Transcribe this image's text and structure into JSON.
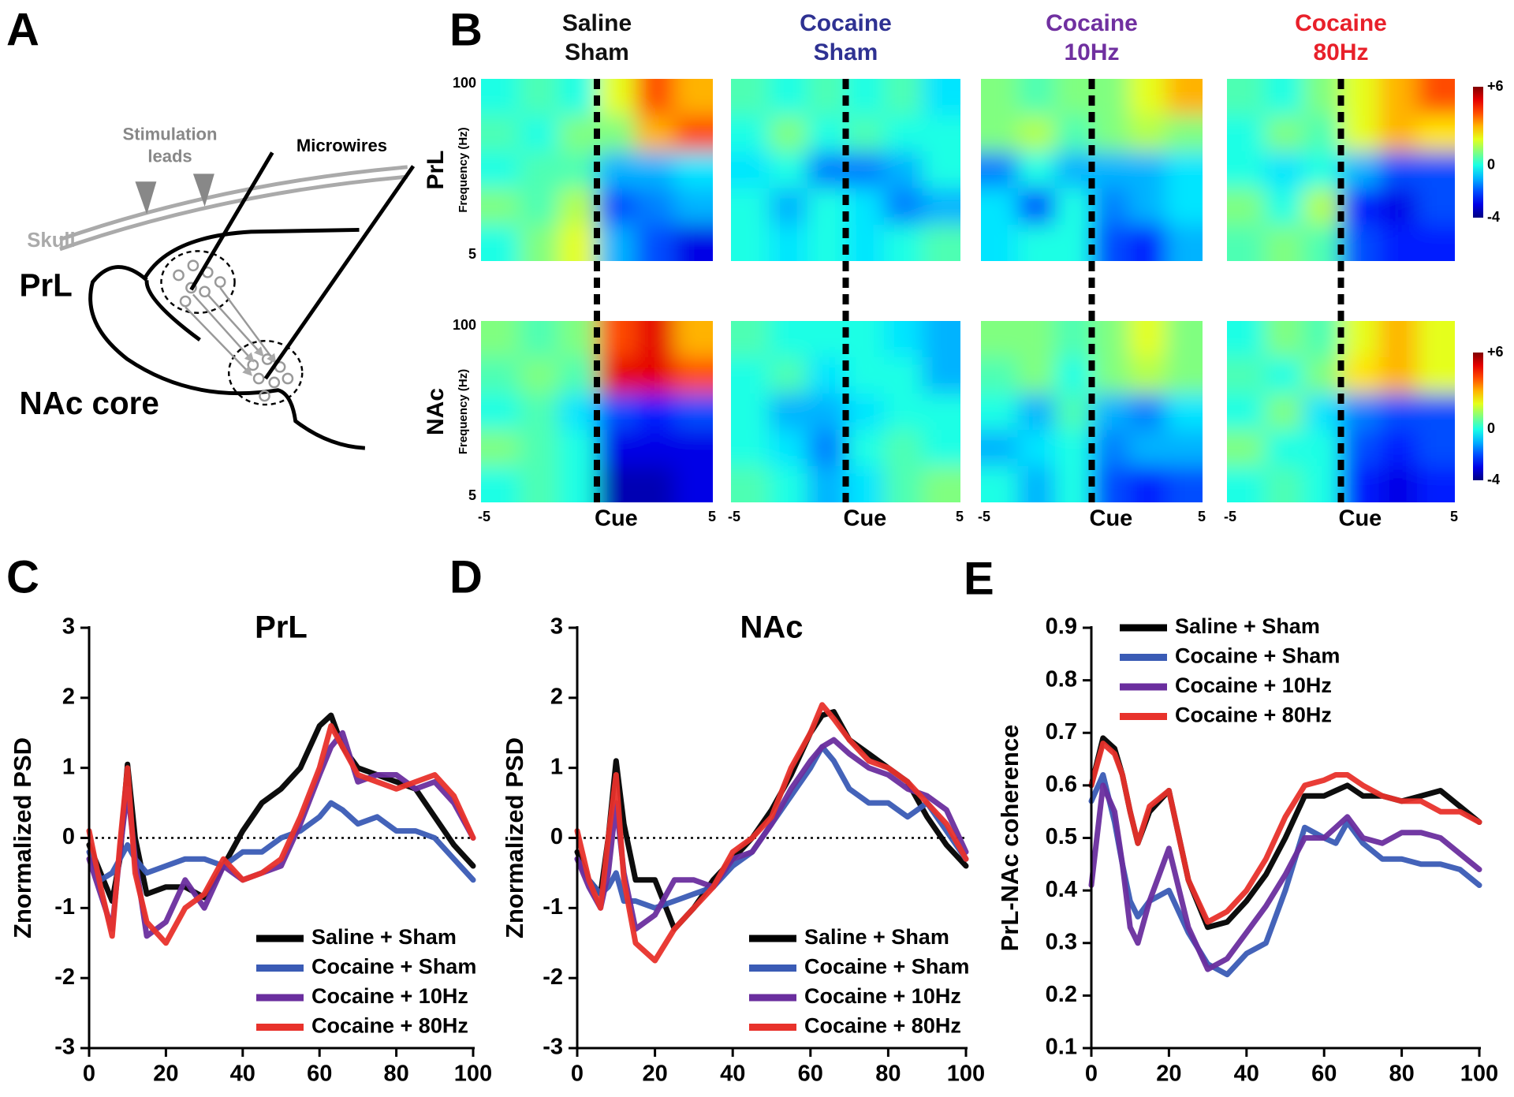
{
  "panel_labels": [
    "A",
    "B",
    "C",
    "D",
    "E"
  ],
  "diagram": {
    "stimulation": [
      "Stimulation",
      "leads"
    ],
    "microwires": "Microwires",
    "skull": "Skull",
    "region_top": "PrL",
    "region_bottom": "NAc core"
  },
  "chart_data": [
    {
      "type": "heatmap",
      "colormap": "jet",
      "columns": [
        {
          "title": [
            "Saline",
            "Sham"
          ],
          "color": "#111111"
        },
        {
          "title": [
            "Cocaine",
            "Sham"
          ],
          "color": "#2e3192"
        },
        {
          "title": [
            "Cocaine",
            "10Hz"
          ],
          "color": "#7030a0"
        },
        {
          "title": [
            "Cocaine",
            "80Hz"
          ],
          "color": "#e8202a"
        }
      ],
      "ylabel": "Frequency (Hz)",
      "xlim": [
        -5,
        5
      ],
      "xticks": [
        -5,
        {
          "value": 0,
          "label": "Cue"
        },
        5
      ],
      "ylim": [
        5,
        100
      ],
      "yticks": [
        5,
        100
      ],
      "clim": [
        -4,
        6
      ],
      "cticks": [
        {
          "value": 6,
          "label": "+6"
        },
        0,
        -4
      ],
      "rows": [
        {
          "label": "PrL",
          "maps": [
            [
              [
                0,
                0.5,
                0,
                2,
                4,
                3
              ],
              [
                0.5,
                0,
                1,
                1,
                3,
                4
              ],
              [
                0,
                0.5,
                0.5,
                -1,
                -1,
                -0.5
              ],
              [
                1,
                0.5,
                1.5,
                -2,
                -1.5,
                -1
              ],
              [
                0,
                1,
                2,
                -1,
                -2,
                -3
              ]
            ],
            [
              [
                0.5,
                0,
                0.5,
                0,
                0.5,
                -0.5
              ],
              [
                0,
                1,
                0,
                0.5,
                0,
                0
              ],
              [
                -0.5,
                0,
                -1.5,
                -1.5,
                -1,
                0
              ],
              [
                0,
                -1,
                0,
                -0.5,
                -1.5,
                -1
              ],
              [
                0,
                -0.5,
                0,
                -0.5,
                0,
                0.5
              ]
            ],
            [
              [
                1,
                0.5,
                1,
                1,
                2,
                3
              ],
              [
                1,
                1.5,
                0.5,
                1,
                1.5,
                1
              ],
              [
                -1.5,
                0,
                -1,
                -1,
                -1,
                -0.5
              ],
              [
                -0.5,
                -2,
                0,
                -1.5,
                -1,
                -0.5
              ],
              [
                -0.5,
                0,
                0,
                -2,
                -2.5,
                -1
              ]
            ],
            [
              [
                0.5,
                0,
                1,
                2,
                3,
                4
              ],
              [
                0,
                1,
                0.5,
                2,
                3,
                2.5
              ],
              [
                0,
                -0.5,
                0,
                -1,
                -2,
                -2
              ],
              [
                1,
                0,
                1.5,
                -2.5,
                -3,
                -2
              ],
              [
                0.5,
                1,
                0.5,
                -2,
                -2.5,
                -2.5
              ]
            ]
          ]
        },
        {
          "label": "NAc",
          "maps": [
            [
              [
                1,
                0.5,
                1,
                4,
                5,
                3
              ],
              [
                0.5,
                1,
                0.5,
                5,
                5,
                4
              ],
              [
                0,
                0.5,
                -0.5,
                -2,
                -2.5,
                -2
              ],
              [
                1,
                0.5,
                0,
                -3,
                -3,
                -3
              ],
              [
                0,
                0.5,
                0,
                -3.5,
                -3.5,
                -3
              ]
            ],
            [
              [
                0.5,
                0,
                0,
                0,
                -0.5,
                -1
              ],
              [
                0,
                0.5,
                -0.5,
                0,
                0,
                -1
              ],
              [
                0,
                -1,
                -1,
                -0.5,
                0,
                0
              ],
              [
                0,
                -0.5,
                -1.5,
                0,
                0.5,
                0
              ],
              [
                0.5,
                0,
                -1,
                -0.5,
                0.5,
                1
              ]
            ],
            [
              [
                1,
                1,
                0.5,
                1,
                2,
                1
              ],
              [
                0.5,
                1,
                0,
                1,
                1.5,
                1
              ],
              [
                0,
                -1,
                0.5,
                -1,
                -1.5,
                -0.5
              ],
              [
                -1,
                -0.5,
                0,
                -1.5,
                -1,
                -1
              ],
              [
                0,
                -1,
                0,
                -2,
                -2.5,
                -2
              ]
            ],
            [
              [
                0,
                1,
                0.5,
                2,
                3,
                2
              ],
              [
                0.5,
                0,
                1,
                2.5,
                3,
                2
              ],
              [
                0,
                1,
                -0.5,
                -1.5,
                -2,
                -2
              ],
              [
                1,
                0,
                0,
                -2,
                -2.5,
                -2
              ],
              [
                0,
                0.5,
                0,
                -2.5,
                -3,
                -2.5
              ]
            ]
          ]
        }
      ]
    },
    {
      "type": "line",
      "title": "PrL",
      "ylabel": "Znormalized PSD",
      "x": [
        0,
        3,
        6,
        8,
        10,
        12,
        15,
        20,
        25,
        30,
        35,
        40,
        45,
        50,
        55,
        60,
        63,
        66,
        70,
        75,
        80,
        85,
        90,
        95,
        100
      ],
      "xlim": [
        0,
        100
      ],
      "xticks": [
        0,
        20,
        40,
        60,
        80,
        100
      ],
      "ylim": [
        -3,
        3
      ],
      "yticks": [
        -3,
        -2,
        -1,
        0,
        1,
        2,
        3
      ],
      "hline": 0,
      "legend": "lower right",
      "series": [
        {
          "name": "Saline + Sham",
          "color": "#000000",
          "values": [
            -0.1,
            -0.5,
            -0.9,
            -0.3,
            1.05,
            0,
            -0.8,
            -0.7,
            -0.7,
            -0.85,
            -0.4,
            0.1,
            0.5,
            0.7,
            1,
            1.6,
            1.75,
            1.3,
            1,
            0.9,
            0.8,
            0.7,
            0.3,
            -0.1,
            -0.4
          ]
        },
        {
          "name": "Cocaine + Sham",
          "color": "#3a5bb5",
          "values": [
            -0.2,
            -0.6,
            -0.5,
            -0.3,
            -0.1,
            -0.3,
            -0.5,
            -0.4,
            -0.3,
            -0.3,
            -0.4,
            -0.2,
            -0.2,
            0,
            0.1,
            0.3,
            0.5,
            0.4,
            0.2,
            0.3,
            0.1,
            0.1,
            0,
            -0.3,
            -0.6
          ]
        },
        {
          "name": "Cocaine + 10Hz",
          "color": "#6a2e9e",
          "values": [
            -0.3,
            -0.8,
            -1.3,
            -0.2,
            0.7,
            -0.3,
            -1.4,
            -1.2,
            -0.6,
            -1,
            -0.4,
            -0.6,
            -0.5,
            -0.4,
            0.2,
            0.9,
            1.3,
            1.5,
            0.8,
            0.9,
            0.9,
            0.7,
            0.8,
            0.5,
            0
          ]
        },
        {
          "name": "Cocaine + 80Hz",
          "color": "#e8322b",
          "values": [
            0.1,
            -0.7,
            -1.4,
            -0.1,
            1,
            -0.5,
            -1.2,
            -1.5,
            -1,
            -0.8,
            -0.3,
            -0.6,
            -0.5,
            -0.3,
            0.3,
            1,
            1.6,
            1.3,
            0.9,
            0.8,
            0.7,
            0.8,
            0.9,
            0.6,
            0
          ]
        }
      ]
    },
    {
      "type": "line",
      "title": "NAc",
      "ylabel": "Znormalized PSD",
      "x": [
        0,
        3,
        6,
        8,
        10,
        12,
        15,
        20,
        25,
        30,
        35,
        40,
        45,
        50,
        55,
        60,
        63,
        66,
        70,
        75,
        80,
        85,
        90,
        95,
        100
      ],
      "xlim": [
        0,
        100
      ],
      "xticks": [
        0,
        20,
        40,
        60,
        80,
        100
      ],
      "ylim": [
        -3,
        3
      ],
      "yticks": [
        -3,
        -2,
        -1,
        0,
        1,
        2,
        3
      ],
      "hline": 0,
      "legend": "lower right",
      "series": [
        {
          "name": "Saline + Sham",
          "color": "#000000",
          "values": [
            -0.2,
            -0.6,
            -0.8,
            0,
            1.1,
            0.2,
            -0.6,
            -0.6,
            -1.3,
            -1,
            -0.6,
            -0.3,
            0,
            0.4,
            0.9,
            1.5,
            1.75,
            1.8,
            1.4,
            1.2,
            1,
            0.8,
            0.3,
            -0.1,
            -0.4
          ]
        },
        {
          "name": "Cocaine + Sham",
          "color": "#3a5bb5",
          "values": [
            -0.3,
            -0.6,
            -0.8,
            -0.7,
            -0.5,
            -0.9,
            -0.9,
            -1,
            -0.9,
            -0.8,
            -0.7,
            -0.4,
            -0.2,
            0.2,
            0.6,
            1,
            1.3,
            1.1,
            0.7,
            0.5,
            0.5,
            0.3,
            0.5,
            0.1,
            -0.3
          ]
        },
        {
          "name": "Cocaine + 10Hz",
          "color": "#6a2e9e",
          "values": [
            -0.3,
            -0.7,
            -1,
            -0.5,
            0.5,
            -0.5,
            -1.3,
            -1.1,
            -0.6,
            -0.6,
            -0.7,
            -0.3,
            -0.2,
            0.2,
            0.7,
            1.1,
            1.3,
            1.4,
            1.2,
            1,
            0.9,
            0.7,
            0.6,
            0.4,
            -0.2
          ]
        },
        {
          "name": "Cocaine + 80Hz",
          "color": "#e8322b",
          "values": [
            0.1,
            -0.6,
            -1,
            0,
            0.9,
            -0.6,
            -1.5,
            -1.75,
            -1.3,
            -1,
            -0.7,
            -0.2,
            0,
            0.3,
            1,
            1.5,
            1.9,
            1.7,
            1.4,
            1.1,
            1,
            0.8,
            0.5,
            0.2,
            -0.3
          ]
        }
      ]
    },
    {
      "type": "line",
      "ylabel": "PrL-NAc coherence",
      "x": [
        0,
        3,
        6,
        8,
        10,
        12,
        15,
        20,
        25,
        30,
        35,
        40,
        45,
        50,
        55,
        60,
        63,
        66,
        70,
        75,
        80,
        85,
        90,
        95,
        100
      ],
      "xlim": [
        0,
        100
      ],
      "xticks": [
        0,
        20,
        40,
        60,
        80,
        100
      ],
      "ylim": [
        0.1,
        0.9
      ],
      "yticks": [
        0.1,
        0.2,
        0.3,
        0.4,
        0.5,
        0.6,
        0.7,
        0.8,
        0.9
      ],
      "legend": "upper left",
      "series": [
        {
          "name": "Saline + Sham",
          "color": "#000000",
          "values": [
            0.6,
            0.69,
            0.67,
            0.62,
            0.55,
            0.49,
            0.55,
            0.59,
            0.42,
            0.33,
            0.34,
            0.38,
            0.43,
            0.5,
            0.58,
            0.58,
            0.59,
            0.6,
            0.58,
            0.58,
            0.57,
            0.58,
            0.59,
            0.56,
            0.53
          ]
        },
        {
          "name": "Cocaine + Sham",
          "color": "#3a5bb5",
          "values": [
            0.57,
            0.62,
            0.53,
            0.45,
            0.38,
            0.35,
            0.38,
            0.4,
            0.32,
            0.26,
            0.24,
            0.28,
            0.3,
            0.4,
            0.52,
            0.5,
            0.49,
            0.53,
            0.49,
            0.46,
            0.46,
            0.45,
            0.45,
            0.44,
            0.41
          ]
        },
        {
          "name": "Cocaine + 10Hz",
          "color": "#6a2e9e",
          "values": [
            0.41,
            0.6,
            0.55,
            0.45,
            0.33,
            0.3,
            0.38,
            0.48,
            0.33,
            0.25,
            0.27,
            0.32,
            0.37,
            0.43,
            0.5,
            0.5,
            0.52,
            0.54,
            0.5,
            0.49,
            0.51,
            0.51,
            0.5,
            0.47,
            0.44
          ]
        },
        {
          "name": "Cocaine + 80Hz",
          "color": "#e8322b",
          "values": [
            0.6,
            0.68,
            0.66,
            0.62,
            0.55,
            0.49,
            0.56,
            0.59,
            0.42,
            0.34,
            0.36,
            0.4,
            0.46,
            0.54,
            0.6,
            0.61,
            0.62,
            0.62,
            0.6,
            0.58,
            0.57,
            0.57,
            0.55,
            0.55,
            0.53
          ]
        }
      ]
    }
  ]
}
